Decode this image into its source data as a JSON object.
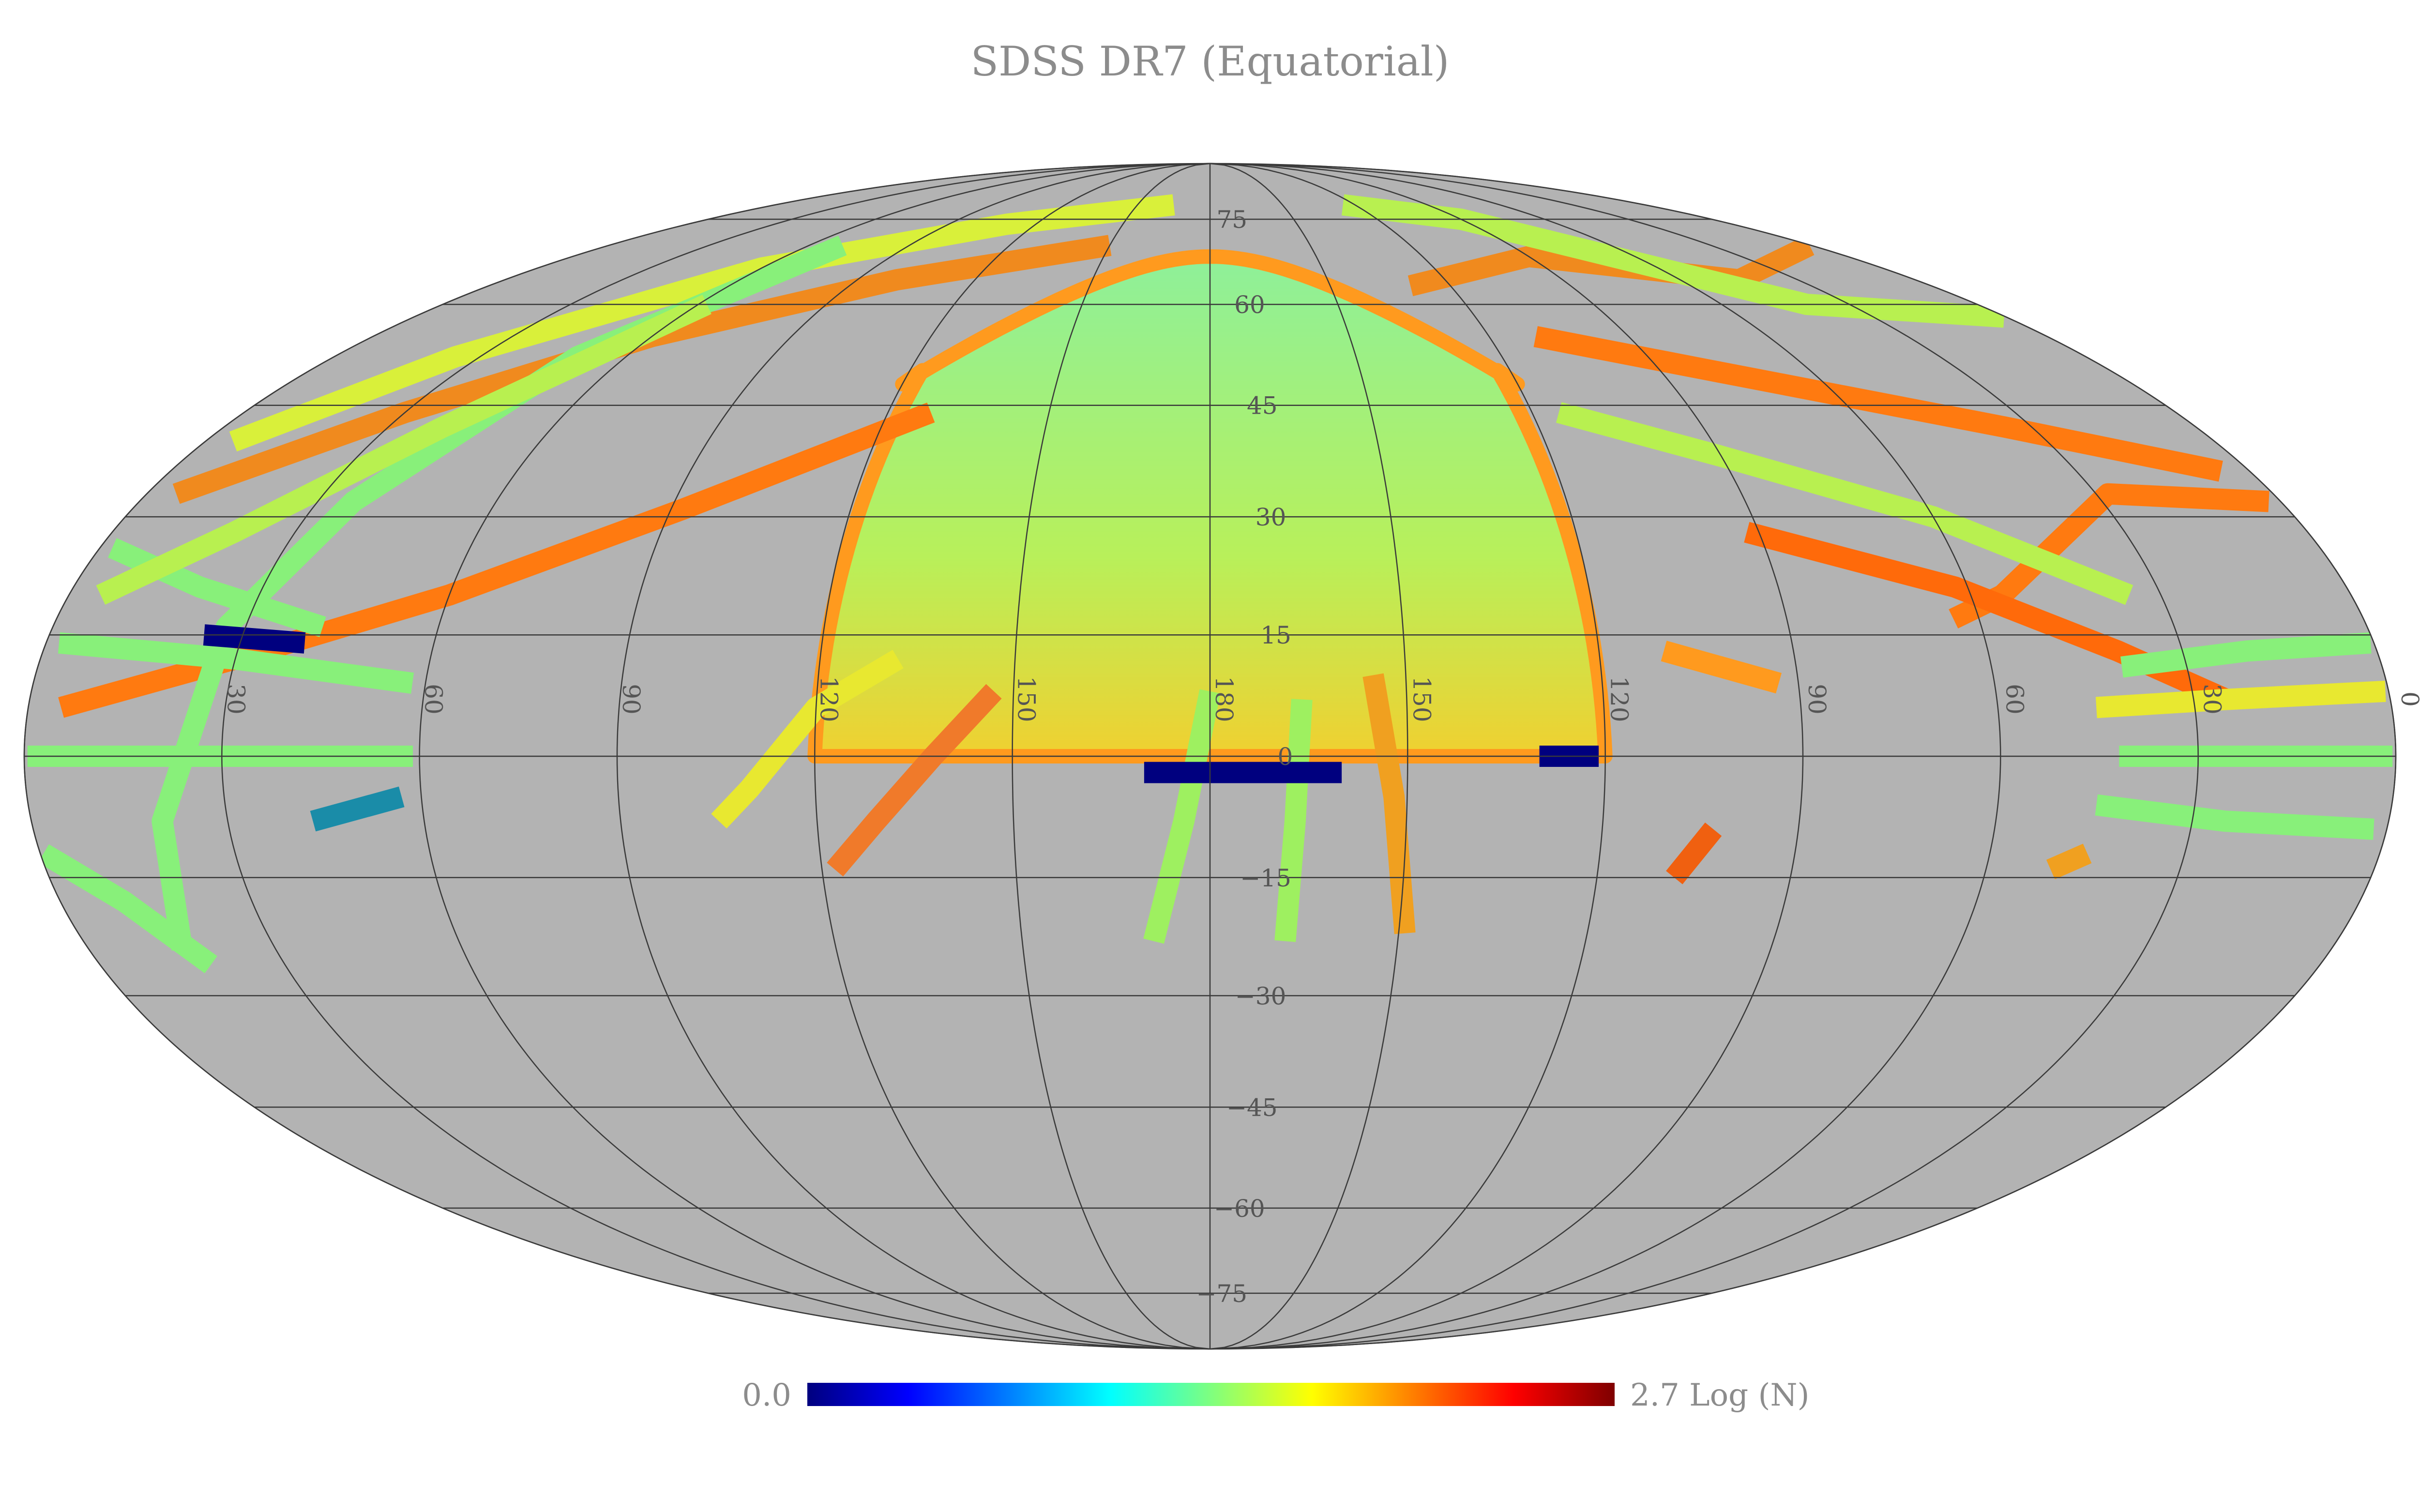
{
  "title": "SDSS DR7 (Equatorial)",
  "projection": "mollweide",
  "center_ra_deg": 180,
  "background_color": "#b3b3b3",
  "grid": {
    "ra_meridians_deg": [
      0,
      30,
      60,
      90,
      120,
      150,
      180,
      210,
      240,
      270,
      300,
      330,
      360
    ],
    "dec_parallels_deg": [
      -75,
      -60,
      -45,
      -30,
      -15,
      0,
      15,
      30,
      45,
      60,
      75
    ],
    "ra_labels": [
      {
        "ra": 0,
        "text": "0"
      },
      {
        "ra": 30,
        "text": "30"
      },
      {
        "ra": 60,
        "text": "60"
      },
      {
        "ra": 90,
        "text": "90"
      },
      {
        "ra": 120,
        "text": "120"
      },
      {
        "ra": 150,
        "text": "150"
      },
      {
        "ra": 180,
        "text": "180"
      },
      {
        "ra": 210,
        "text": "150"
      },
      {
        "ra": 240,
        "text": "120"
      },
      {
        "ra": 270,
        "text": "90"
      },
      {
        "ra": 300,
        "text": "60"
      },
      {
        "ra": 330,
        "text": "30"
      }
    ],
    "dec_labels": [
      {
        "dec": 75,
        "text": "75"
      },
      {
        "dec": 60,
        "text": "60"
      },
      {
        "dec": 45,
        "text": "45"
      },
      {
        "dec": 30,
        "text": "30"
      },
      {
        "dec": 15,
        "text": "15"
      },
      {
        "dec": 0,
        "text": "0"
      },
      {
        "dec": -15,
        "text": "−15"
      },
      {
        "dec": -30,
        "text": "−30"
      },
      {
        "dec": -45,
        "text": "−45"
      },
      {
        "dec": -60,
        "text": "−60"
      },
      {
        "dec": -75,
        "text": "−75"
      }
    ]
  },
  "colorbar": {
    "min_label": "0.0",
    "max_label": "2.7 Log (N)",
    "colors": [
      "#00007f",
      "#0000ff",
      "#007fff",
      "#00ffff",
      "#7fff7f",
      "#ffff00",
      "#ff7f00",
      "#ff0000",
      "#7f0000"
    ]
  },
  "coverage": {
    "cap": {
      "color": "#9ef26a",
      "edge_color": "#ff9a1e",
      "dec_min": 0,
      "dec_max": 68
    },
    "stripes": [
      {
        "color": "#f08a1e",
        "points": [
          [
            210,
            70
          ],
          [
            260,
            64
          ],
          [
            300,
            55
          ],
          [
            330,
            44
          ],
          [
            355,
            33
          ]
        ]
      },
      {
        "color": "#d9f03a",
        "points": [
          [
            195,
            78
          ],
          [
            250,
            74
          ],
          [
            300,
            66
          ],
          [
            335,
            52
          ],
          [
            355,
            40
          ]
        ]
      },
      {
        "color": "#ff7a10",
        "points": [
          [
            232,
            44
          ],
          [
            268,
            31
          ],
          [
            300,
            20
          ],
          [
            330,
            12
          ],
          [
            355,
            6
          ]
        ]
      },
      {
        "color": "#88f07a",
        "points": [
          [
            318,
            16
          ],
          [
            340,
            21
          ],
          [
            358,
            26
          ]
        ]
      },
      {
        "color": "#88f07a",
        "points": [
          [
            302,
            9
          ],
          [
            330,
            12
          ],
          [
            358,
            14
          ]
        ]
      },
      {
        "color": "#88f07a",
        "points": [
          [
            301,
            0
          ],
          [
            330,
            0
          ],
          [
            359.5,
            0
          ]
        ]
      },
      {
        "color": "#88f07a",
        "points": [
          [
            290,
            70
          ],
          [
            310,
            52
          ],
          [
            324,
            32
          ],
          [
            333,
            16
          ],
          [
            340,
            -8
          ],
          [
            345,
            -24
          ]
        ]
      },
      {
        "color": "#b8f050",
        "points": [
          [
            298,
            60
          ],
          [
            320,
            42
          ],
          [
            340,
            28
          ],
          [
            355,
            20
          ]
        ]
      },
      {
        "color": "#88f07a",
        "points": [
          [
            342,
            -26
          ],
          [
            350,
            -18
          ],
          [
            359.5,
            -12
          ]
        ]
      },
      {
        "color": "#e8e830",
        "points": [
          [
            228,
            12
          ],
          [
            240,
            6
          ],
          [
            250,
            -4
          ],
          [
            255,
            -8
          ]
        ]
      },
      {
        "color": "#f07a2a",
        "points": [
          [
            213,
            8
          ],
          [
            222,
            0
          ],
          [
            231,
            -8
          ],
          [
            238,
            -14
          ]
        ]
      },
      {
        "color": "#00007f",
        "points": [
          [
            320,
            14
          ],
          [
            336,
            15
          ]
        ]
      },
      {
        "color": "#1a8ca8",
        "points": [
          [
            303,
            -5
          ],
          [
            317,
            -8
          ]
        ]
      },
      {
        "color": "#f0a020",
        "points": [
          [
            155,
            10
          ],
          [
            152,
            -5
          ],
          [
            149,
            -22
          ]
        ]
      },
      {
        "color": "#9ef060",
        "points": [
          [
            166,
            7
          ],
          [
            167,
            -8
          ],
          [
            168,
            -23
          ]
        ]
      },
      {
        "color": "#9ef060",
        "points": [
          [
            180,
            8
          ],
          [
            184,
            -8
          ],
          [
            189,
            -23
          ]
        ]
      },
      {
        "color": "#00007f",
        "points": [
          [
            121,
            0
          ],
          [
            130,
            0
          ]
        ]
      },
      {
        "color": "#00007f",
        "points": [
          [
            160,
            -2
          ],
          [
            190,
            -2
          ]
        ]
      },
      {
        "color": "#f08a1e",
        "points": [
          [
            0.5,
            70
          ],
          [
            45,
            64
          ],
          [
            90,
            68
          ],
          [
            130,
            63
          ]
        ]
      },
      {
        "color": "#b8f050",
        "points": [
          [
            0.5,
            58
          ],
          [
            40,
            60
          ],
          [
            90,
            75
          ],
          [
            125,
            78
          ]
        ]
      },
      {
        "color": "#ff7a10",
        "points": [
          [
            2,
            32
          ],
          [
            28,
            33
          ],
          [
            55,
            20
          ],
          [
            64,
            17
          ]
        ]
      },
      {
        "color": "#ff7a10",
        "points": [
          [
            5,
            36
          ],
          [
            35,
            42
          ],
          [
            80,
            50
          ],
          [
            110,
            55
          ]
        ]
      },
      {
        "color": "#b8f050",
        "points": [
          [
            35,
            20
          ],
          [
            60,
            30
          ],
          [
            90,
            38
          ],
          [
            115,
            44
          ]
        ]
      },
      {
        "color": "#ff6a0a",
        "points": [
          [
            25,
            7
          ],
          [
            40,
            13
          ],
          [
            62,
            21
          ],
          [
            92,
            28
          ]
        ]
      },
      {
        "color": "#88f07a",
        "points": [
          [
            0.5,
            14
          ],
          [
            20,
            13
          ],
          [
            40,
            11
          ]
        ]
      },
      {
        "color": "#e8e830",
        "points": [
          [
            0.5,
            8
          ],
          [
            25,
            7
          ],
          [
            45,
            6
          ]
        ]
      },
      {
        "color": "#88f07a",
        "points": [
          [
            0.5,
            0
          ],
          [
            20,
            0
          ],
          [
            42,
            0
          ]
        ]
      },
      {
        "color": "#88f07a",
        "points": [
          [
            2,
            -9
          ],
          [
            25,
            -8
          ],
          [
            45,
            -6
          ]
        ]
      },
      {
        "color": "#f0a020",
        "points": [
          [
            45,
            -12
          ],
          [
            50,
            -14
          ]
        ]
      },
      {
        "color": "#f06010",
        "points": [
          [
            103,
            -9
          ],
          [
            108,
            -15
          ]
        ]
      },
      {
        "color": "#ff9a1e",
        "points": [
          [
            93,
            9
          ],
          [
            110,
            13
          ]
        ]
      }
    ]
  }
}
